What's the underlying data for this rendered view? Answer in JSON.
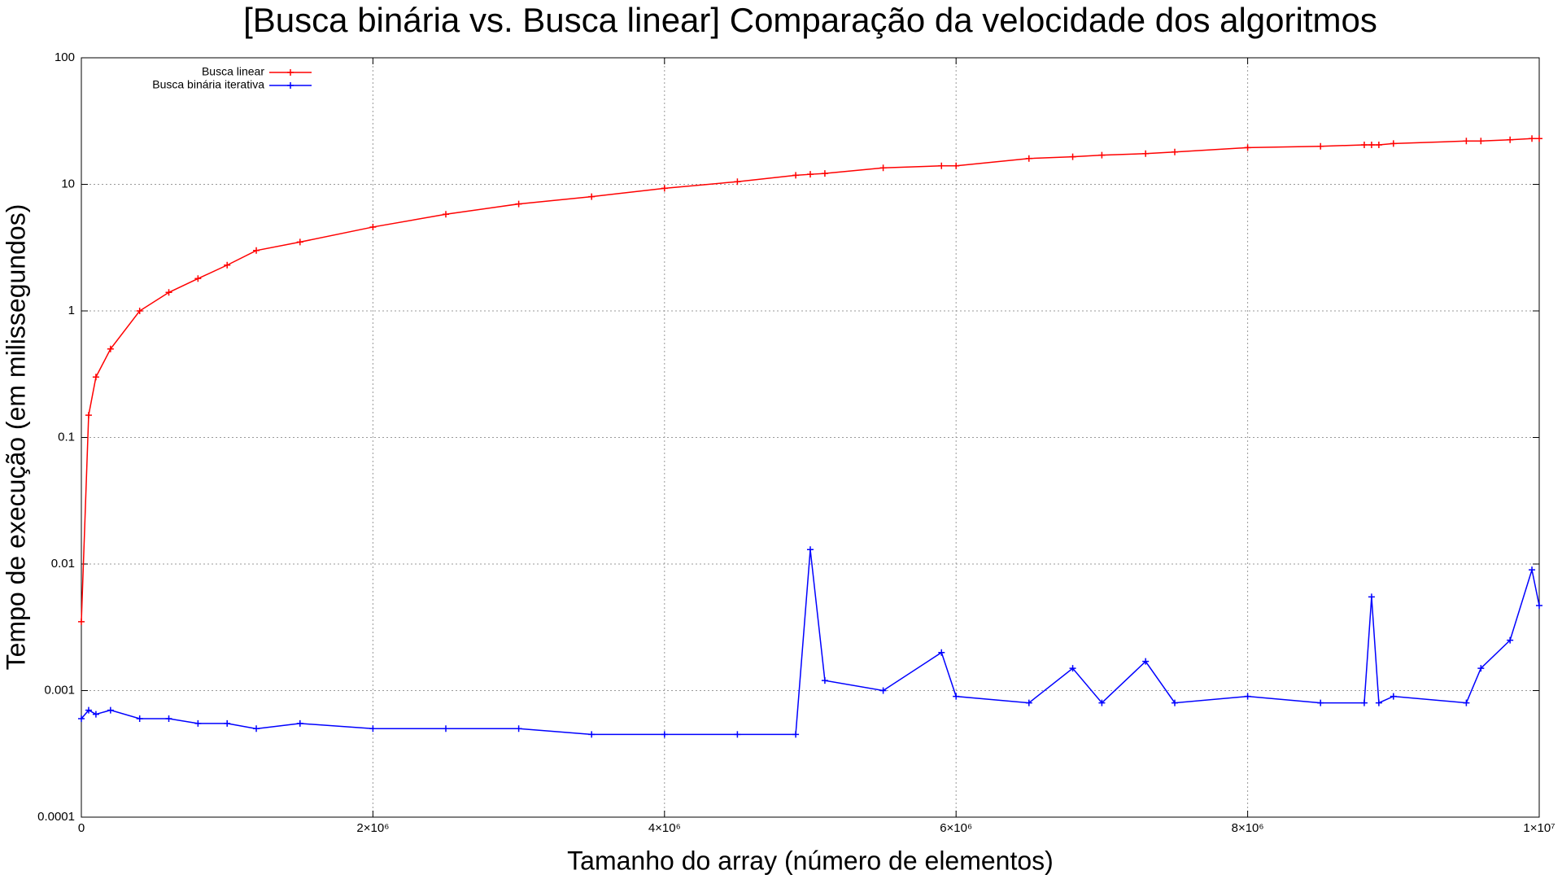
{
  "chart_data": {
    "type": "line",
    "title": "[Busca binária vs. Busca linear] Comparação da velocidade dos algoritmos",
    "x_label": "Tamanho do array (número de elementos)",
    "y_label": "Tempo de execução (em milissegundos)",
    "x": [
      0,
      50000,
      100000,
      200000,
      400000,
      600000,
      800000,
      1000000,
      1200000,
      1500000,
      2000000,
      2500000,
      3000000,
      3500000,
      4000000,
      4500000,
      4900000,
      5000000,
      5100000,
      5500000,
      5900000,
      6000000,
      6500000,
      6800000,
      7000000,
      7300000,
      7500000,
      8000000,
      8500000,
      8800000,
      8850000,
      8900000,
      9000000,
      9500000,
      9600000,
      9800000,
      9950000,
      10000000
    ],
    "series": [
      {
        "name": "Busca linear",
        "color": "#ff0000",
        "values": [
          0.0035,
          0.15,
          0.3,
          0.5,
          1.0,
          1.4,
          1.8,
          2.3,
          3.0,
          3.5,
          4.6,
          5.8,
          7.0,
          8.0,
          9.3,
          10.5,
          11.8,
          12,
          12.2,
          13.5,
          14,
          14,
          16,
          16.5,
          17,
          17.5,
          18,
          19.5,
          20,
          20.5,
          20.5,
          20.5,
          21,
          22,
          22,
          22.5,
          23,
          23
        ]
      },
      {
        "name": "Busca binária iterativa",
        "color": "#0000ff",
        "values": [
          0.0006,
          0.0007,
          0.00065,
          0.0007,
          0.0006,
          0.0006,
          0.00055,
          0.00055,
          0.0005,
          0.00055,
          0.0005,
          0.0005,
          0.0005,
          0.00045,
          0.00045,
          0.00045,
          0.00045,
          0.013,
          0.0012,
          0.001,
          0.002,
          0.0009,
          0.0008,
          0.0015,
          0.0008,
          0.0017,
          0.0008,
          0.0009,
          0.0008,
          0.0008,
          0.0055,
          0.0008,
          0.0009,
          0.0008,
          0.0015,
          0.0025,
          0.009,
          0.0047
        ]
      }
    ],
    "xlim": [
      0,
      10000000
    ],
    "xticks": [
      0,
      {
        "value": 2000000,
        "label": "2×10⁶"
      },
      {
        "value": 4000000,
        "label": "4×10⁶"
      },
      {
        "value": 6000000,
        "label": "6×10⁶"
      },
      {
        "value": 8000000,
        "label": "8×10⁶"
      },
      {
        "value": 10000000,
        "label": "1×10⁷"
      }
    ],
    "ylim": [
      0.0001,
      100
    ],
    "yticks": [
      0.0001,
      0.001,
      0.01,
      0.1,
      1,
      10,
      100
    ],
    "y_scale": "log",
    "grid": true,
    "legend": "top-left"
  }
}
